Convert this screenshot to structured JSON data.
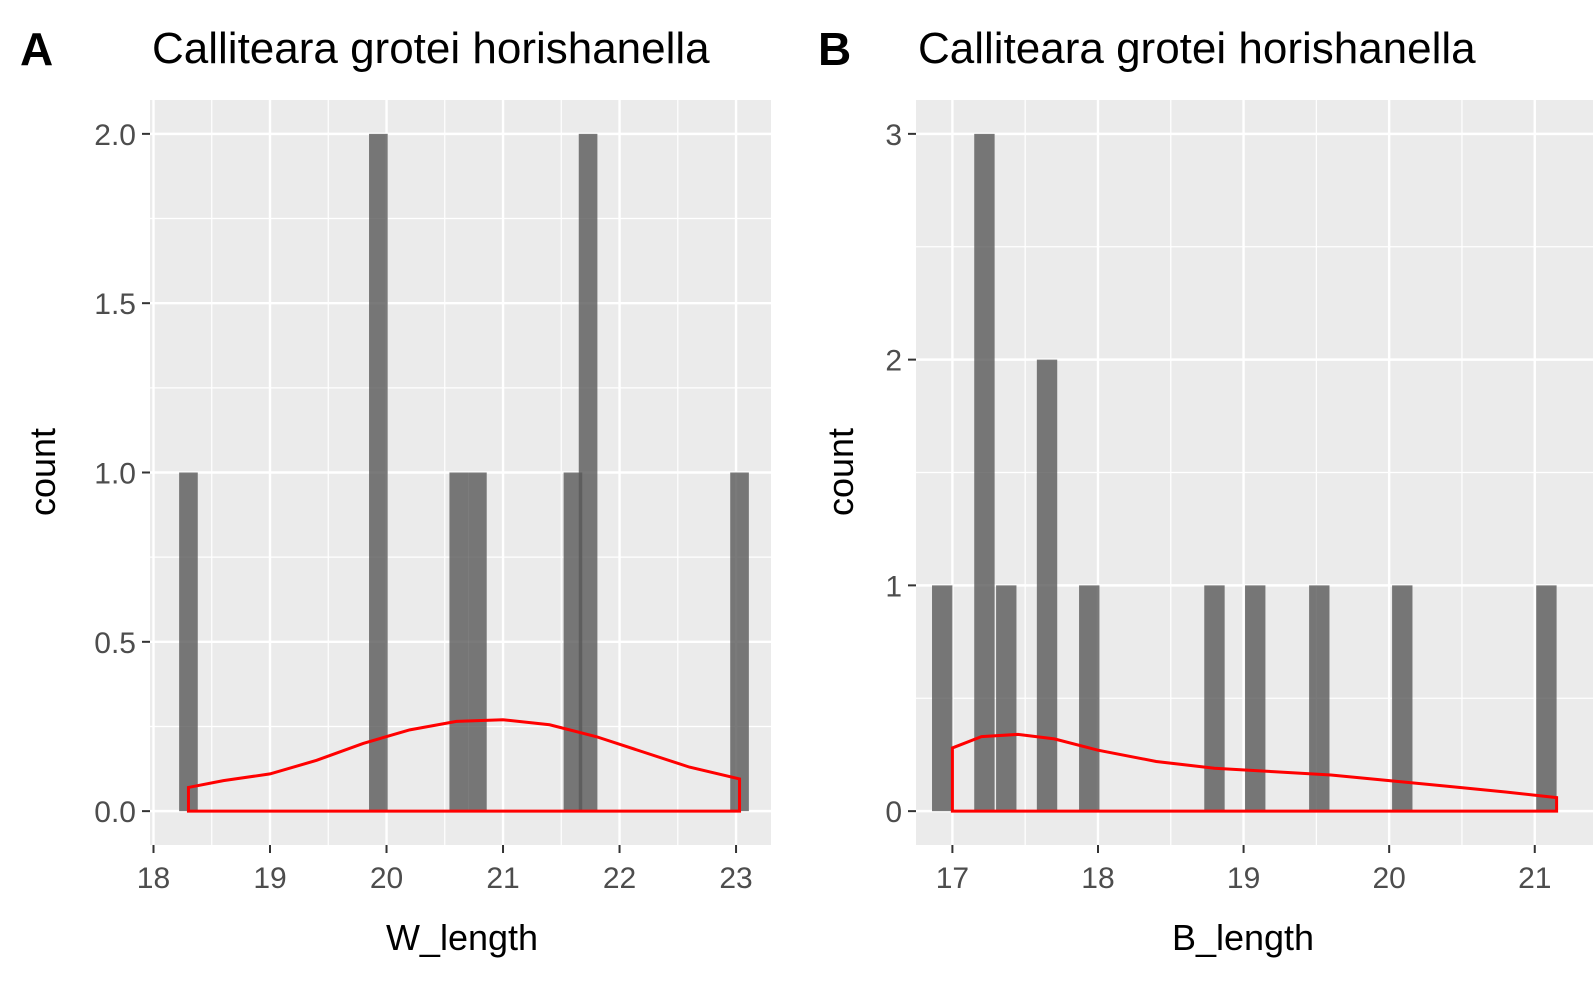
{
  "chart_data": [
    {
      "type": "bar",
      "panel": "A",
      "title": "Calliteara grotei horishanella",
      "xlabel": "W_length",
      "ylabel": "count",
      "xlim": [
        17.97,
        23.3
      ],
      "ylim": [
        -0.1,
        2.1
      ],
      "xticks": [
        "18",
        "19",
        "20",
        "21",
        "22",
        "23"
      ],
      "yticks": [
        "0.0",
        "0.5",
        "1.0",
        "1.5",
        "2.0"
      ],
      "bar_width": 0.16,
      "bars": [
        {
          "x": 18.3,
          "count": 1
        },
        {
          "x": 19.93,
          "count": 2
        },
        {
          "x": 20.62,
          "count": 1
        },
        {
          "x": 20.78,
          "count": 1
        },
        {
          "x": 21.6,
          "count": 1
        },
        {
          "x": 21.73,
          "count": 2
        },
        {
          "x": 23.03,
          "count": 1
        }
      ],
      "density": {
        "color": "#ff0000",
        "x": [
          18.3,
          18.6,
          19.0,
          19.4,
          19.8,
          20.2,
          20.6,
          21.0,
          21.4,
          21.8,
          22.2,
          22.6,
          23.03
        ],
        "y": [
          0.07,
          0.09,
          0.11,
          0.15,
          0.2,
          0.24,
          0.265,
          0.27,
          0.255,
          0.22,
          0.175,
          0.13,
          0.095
        ]
      },
      "grid": true
    },
    {
      "type": "bar",
      "panel": "B",
      "title": "Calliteara grotei horishanella",
      "xlabel": "B_length",
      "ylabel": "count",
      "xlim": [
        16.75,
        21.4
      ],
      "ylim": [
        -0.15,
        3.15
      ],
      "xticks": [
        "17",
        "18",
        "19",
        "20",
        "21"
      ],
      "yticks": [
        "0",
        "1",
        "2",
        "3"
      ],
      "bar_width": 0.14,
      "bars": [
        {
          "x": 16.93,
          "count": 1
        },
        {
          "x": 17.22,
          "count": 3
        },
        {
          "x": 17.37,
          "count": 1
        },
        {
          "x": 17.65,
          "count": 2
        },
        {
          "x": 17.94,
          "count": 1
        },
        {
          "x": 18.8,
          "count": 1
        },
        {
          "x": 19.08,
          "count": 1
        },
        {
          "x": 19.52,
          "count": 1
        },
        {
          "x": 20.09,
          "count": 1
        },
        {
          "x": 21.08,
          "count": 1
        }
      ],
      "density": {
        "color": "#ff0000",
        "x": [
          17.0,
          17.2,
          17.45,
          17.7,
          18.0,
          18.4,
          18.8,
          19.2,
          19.6,
          20.0,
          20.4,
          20.8,
          21.15
        ],
        "y": [
          0.28,
          0.33,
          0.34,
          0.32,
          0.27,
          0.22,
          0.19,
          0.175,
          0.16,
          0.135,
          0.11,
          0.085,
          0.06
        ]
      },
      "grid": true
    }
  ]
}
